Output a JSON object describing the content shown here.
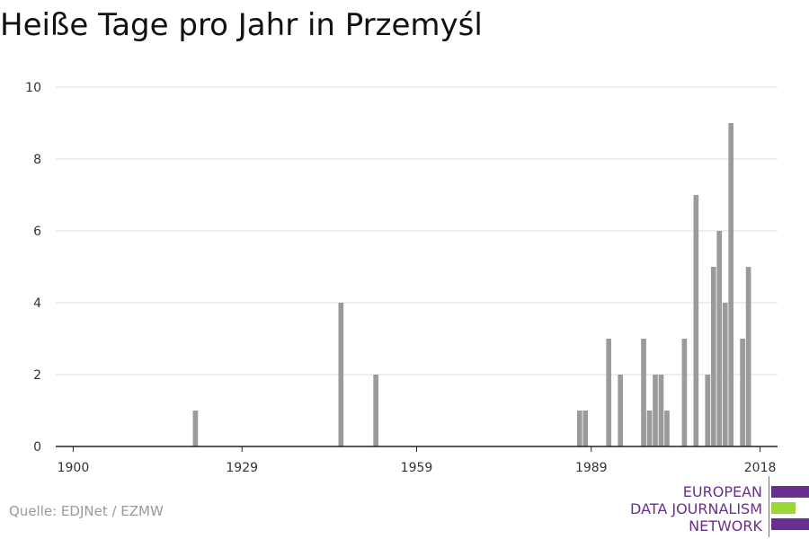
{
  "title": "Heiße Tage pro Jahr in Przemyśl",
  "source": "Quelle: EDJNet / EZMW",
  "logo": {
    "line1": "EUROPEAN",
    "line2": "DATA JOURNALISM",
    "line3": "NETWORK",
    "colors": {
      "primary": "#6a2f8e",
      "accent": "#9bd63a"
    }
  },
  "chart_data": {
    "type": "bar",
    "title": "Heiße Tage pro Jahr in Przemyśl",
    "xlabel": "",
    "ylabel": "",
    "xlim": [
      1897,
      2021
    ],
    "ylim": [
      0,
      10
    ],
    "x_ticks": [
      1900,
      1929,
      1959,
      1989,
      2018
    ],
    "y_ticks": [
      0,
      2,
      4,
      6,
      8,
      10
    ],
    "grid": true,
    "bar_color": "#9b9b9b",
    "x": [
      1921,
      1946,
      1952,
      1987,
      1988,
      1992,
      1994,
      1998,
      1999,
      2000,
      2001,
      2002,
      2005,
      2007,
      2009,
      2010,
      2011,
      2012,
      2013,
      2015,
      2016,
      2017
    ],
    "values": [
      1,
      4,
      2,
      1,
      1,
      3,
      2,
      3,
      1,
      2,
      2,
      1,
      3,
      7,
      2,
      5,
      6,
      4,
      9,
      3,
      5,
      0
    ]
  }
}
